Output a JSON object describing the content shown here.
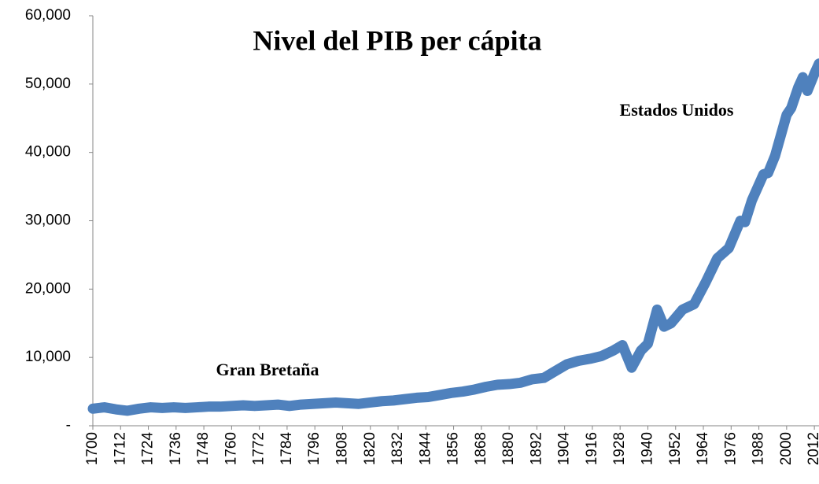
{
  "chart_data": {
    "type": "line",
    "title": "Nivel del PIB per cápita",
    "annotations": [
      "Gran Bretaña",
      "Estados Unidos"
    ],
    "x": [
      1700,
      1705,
      1710,
      1715,
      1720,
      1725,
      1730,
      1735,
      1740,
      1745,
      1750,
      1755,
      1760,
      1765,
      1770,
      1775,
      1780,
      1785,
      1790,
      1795,
      1800,
      1805,
      1810,
      1815,
      1820,
      1825,
      1830,
      1835,
      1840,
      1845,
      1850,
      1855,
      1860,
      1865,
      1870,
      1875,
      1880,
      1885,
      1890,
      1895,
      1900,
      1905,
      1910,
      1915,
      1920,
      1925,
      1929,
      1933,
      1937,
      1940,
      1944,
      1947,
      1950,
      1955,
      1960,
      1965,
      1970,
      1975,
      1980,
      1982,
      1985,
      1990,
      1992,
      1995,
      2000,
      2002,
      2005,
      2007,
      2009,
      2012,
      2014
    ],
    "series": [
      {
        "name": "PIB per cápita",
        "color": "#4f81bd",
        "values": [
          2500,
          2700,
          2400,
          2200,
          2500,
          2700,
          2600,
          2700,
          2600,
          2700,
          2800,
          2800,
          2900,
          3000,
          2900,
          3000,
          3100,
          2900,
          3100,
          3200,
          3300,
          3400,
          3300,
          3200,
          3400,
          3600,
          3700,
          3900,
          4100,
          4200,
          4500,
          4800,
          5000,
          5300,
          5700,
          6000,
          6100,
          6300,
          6800,
          7000,
          8000,
          9000,
          9500,
          9800,
          10200,
          11000,
          11800,
          8500,
          11000,
          12000,
          17000,
          14500,
          15000,
          17000,
          17800,
          21000,
          24500,
          26000,
          30000,
          29800,
          33000,
          36800,
          37000,
          39500,
          45500,
          46500,
          49500,
          51000,
          49000,
          51500,
          53000
        ]
      }
    ],
    "xlim": [
      1700,
      2014
    ],
    "xticks": [
      1700,
      1712,
      1724,
      1736,
      1748,
      1760,
      1772,
      1784,
      1796,
      1808,
      1820,
      1832,
      1844,
      1856,
      1868,
      1880,
      1892,
      1904,
      1916,
      1928,
      1940,
      1952,
      1964,
      1976,
      1988,
      2000,
      2012
    ],
    "ylim": [
      0,
      60000
    ],
    "yticks": [
      {
        "value": 0,
        "label": "-"
      },
      {
        "value": 10000,
        "label": "10,000"
      },
      {
        "value": 20000,
        "label": "20,000"
      },
      {
        "value": 30000,
        "label": "30,000"
      },
      {
        "value": 40000,
        "label": "40,000"
      },
      {
        "value": 50000,
        "label": "50,000"
      },
      {
        "value": 60000,
        "label": "60,000"
      }
    ],
    "grid": false
  }
}
